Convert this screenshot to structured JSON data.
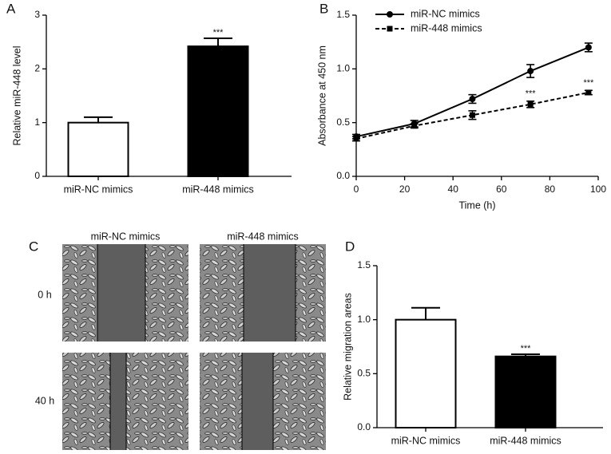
{
  "panel_labels": [
    "A",
    "B",
    "C",
    "D"
  ],
  "micrographs": {
    "columns": [
      "miR-NC mimics",
      "miR-448 mimics"
    ],
    "rows": [
      "0 h",
      "40 h"
    ]
  },
  "chart_data": [
    {
      "type": "bar",
      "ylabel": "Relative miR-448 level",
      "categories": [
        "miR-NC mimics",
        "miR-448 mimics"
      ],
      "values": [
        1.0,
        2.42
      ],
      "errors": [
        0.1,
        0.15
      ],
      "colors": [
        "#ffffff",
        "#000000"
      ],
      "significance": [
        null,
        "***"
      ],
      "ylim": [
        0,
        3
      ],
      "yticks": [
        0,
        1,
        2,
        3
      ]
    },
    {
      "type": "line",
      "xlabel": "Time (h)",
      "ylabel": "Absorbance at 450 nm",
      "x": [
        0,
        24,
        48,
        72,
        96
      ],
      "series": [
        {
          "name": "miR-NC mimics",
          "color": "#000000",
          "marker": "circle",
          "line_style": "solid",
          "values": [
            0.37,
            0.49,
            0.72,
            0.98,
            1.2
          ],
          "errors": [
            0.02,
            0.03,
            0.04,
            0.06,
            0.04
          ],
          "significance": [
            null,
            null,
            null,
            null,
            null
          ]
        },
        {
          "name": "miR-448 mimics",
          "color": "#000000",
          "marker": "square",
          "line_style": "dashed",
          "values": [
            0.35,
            0.47,
            0.57,
            0.67,
            0.78
          ],
          "errors": [
            0.02,
            0.02,
            0.04,
            0.03,
            0.02
          ],
          "significance": [
            null,
            null,
            null,
            "***",
            "***"
          ]
        }
      ],
      "legend": "top-left",
      "xlim": [
        0,
        100
      ],
      "xticks": [
        0,
        20,
        40,
        60,
        80,
        100
      ],
      "ylim": [
        0,
        1.5
      ],
      "yticks": [
        {
          "value": 0,
          "label": "0.0"
        },
        {
          "value": 0.5,
          "label": "0.5"
        },
        {
          "value": 1,
          "label": "1.0"
        },
        {
          "value": 1.5,
          "label": "1.5"
        }
      ]
    },
    {
      "type": "bar",
      "ylabel": "Relative migration areas",
      "categories": [
        "miR-NC mimics",
        "miR-448 mimics"
      ],
      "values": [
        1.0,
        0.66
      ],
      "errors": [
        0.11,
        0.02
      ],
      "colors": [
        "#ffffff",
        "#000000"
      ],
      "significance": [
        null,
        "***"
      ],
      "ylim": [
        0,
        1.5
      ],
      "yticks": [
        {
          "value": 0,
          "label": "0.0"
        },
        {
          "value": 0.5,
          "label": "0.5"
        },
        {
          "value": 1,
          "label": "1.0"
        },
        {
          "value": 1.5,
          "label": "1.5"
        }
      ]
    }
  ]
}
